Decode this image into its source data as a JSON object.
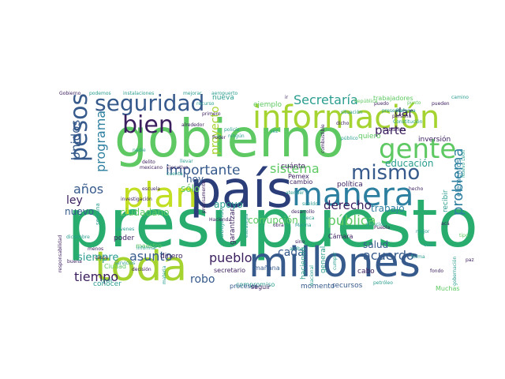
{
  "palette": {
    "dark_purple": "#3b1e5e",
    "deep_blue": "#2b3e7a",
    "blue": "#365a8c",
    "teal_blue": "#2d7fa0",
    "teal": "#2a9d8f",
    "green": "#28ad6e",
    "light_green": "#5ec962",
    "lime": "#a5d330",
    "yellow_green": "#c2df23"
  },
  "words": [
    {
      "text": "presupuesto",
      "color": "green"
    },
    {
      "text": "gobierno",
      "color": "light_green"
    },
    {
      "text": "país",
      "color": "deep_blue"
    },
    {
      "text": "toda",
      "color": "lime"
    },
    {
      "text": "millones",
      "color": "blue"
    },
    {
      "text": "información",
      "color": "lime"
    },
    {
      "text": "manera",
      "color": "teal_blue"
    },
    {
      "text": "plan",
      "color": "yellow_green"
    },
    {
      "text": "seguridad",
      "color": "blue"
    },
    {
      "text": "gente",
      "color": "light_green"
    },
    {
      "text": "pesos",
      "color": "blue"
    },
    {
      "text": "bien",
      "color": "dark_purple"
    },
    {
      "text": "mismo",
      "color": "blue"
    },
    {
      "text": "Secretaría",
      "color": "teal"
    },
    {
      "text": "importante",
      "color": "blue"
    },
    {
      "text": "programa",
      "color": "teal_blue"
    },
    {
      "text": "Unidos",
      "color": "blue"
    },
    {
      "text": "sistema",
      "color": "light_green"
    },
    {
      "text": "parte",
      "color": "dark_purple"
    },
    {
      "text": "pública",
      "color": "light_green"
    },
    {
      "text": "derecho",
      "color": "dark_purple"
    },
    {
      "text": "problema",
      "color": "teal_blue"
    },
    {
      "text": "dar",
      "color": "dark_purple"
    },
    {
      "text": "educación",
      "color": "teal"
    },
    {
      "text": "proyecto",
      "color": "lime"
    },
    {
      "text": "pueblo",
      "color": "dark_purple"
    },
    {
      "text": "tiempo",
      "color": "dark_purple"
    },
    {
      "text": "asunto",
      "color": "blue"
    },
    {
      "text": "siempre",
      "color": "teal"
    },
    {
      "text": "acuerdo",
      "color": "blue"
    },
    {
      "text": "salud",
      "color": "blue"
    },
    {
      "text": "cada",
      "color": "blue"
    },
    {
      "text": "años",
      "color": "blue"
    },
    {
      "text": "ley",
      "color": "dark_purple"
    },
    {
      "text": "nuevo",
      "color": "blue"
    },
    {
      "text": "ciudadano",
      "color": "light_green"
    },
    {
      "text": "apoyo",
      "color": "teal"
    },
    {
      "text": "corrupción",
      "color": "light_green"
    },
    {
      "text": "trabajo",
      "color": "teal_blue"
    },
    {
      "text": "robo",
      "color": "blue"
    },
    {
      "text": "hoy",
      "color": "blue"
    },
    {
      "text": "sólo",
      "color": "light_green"
    },
    {
      "text": "ejemplo",
      "color": "light_green"
    },
    {
      "text": "trabajadores",
      "color": "light_green"
    },
    {
      "text": "política",
      "color": "dark_purple"
    },
    {
      "text": "Pemex",
      "color": "dark_purple"
    },
    {
      "text": "cuánto",
      "color": "dark_purple"
    },
    {
      "text": "cambio",
      "color": "dark_purple"
    },
    {
      "text": "inversión",
      "color": "dark_purple"
    },
    {
      "text": "recibir",
      "color": "teal"
    },
    {
      "text": "elementos",
      "color": "teal_blue"
    },
    {
      "text": "Cámara",
      "color": "dark_purple"
    },
    {
      "text": "recursos",
      "color": "blue"
    },
    {
      "text": "momento",
      "color": "blue"
    },
    {
      "text": "compromiso",
      "color": "teal"
    },
    {
      "text": "Muchas",
      "color": "light_green"
    },
    {
      "text": "mañana",
      "color": "blue"
    },
    {
      "text": "procesos",
      "color": "blue"
    },
    {
      "text": "seguir",
      "color": "dark_purple"
    },
    {
      "text": "secretario",
      "color": "dark_purple"
    },
    {
      "text": "garantizar",
      "color": "dark_purple"
    },
    {
      "text": "dinero",
      "color": "dark_purple"
    },
    {
      "text": "poder",
      "color": "dark_purple"
    },
    {
      "text": "conocer",
      "color": "teal"
    },
    {
      "text": "maestro",
      "color": "light_green"
    },
    {
      "text": "Ciudad",
      "color": "light_green"
    },
    {
      "text": "trabajando",
      "color": "teal"
    },
    {
      "text": "hablando",
      "color": "dark_purple"
    },
    {
      "text": "Gobierno",
      "color": "dark_purple"
    },
    {
      "text": "podemos",
      "color": "teal"
    },
    {
      "text": "instalaciones",
      "color": "teal"
    },
    {
      "text": "mejorar",
      "color": "teal"
    },
    {
      "text": "aeropuerto",
      "color": "teal"
    },
    {
      "text": "nueva",
      "color": "teal"
    },
    {
      "text": "primero",
      "color": "dark_purple"
    },
    {
      "text": "dicho",
      "color": "dark_purple"
    },
    {
      "text": "puedo",
      "color": "dark_purple"
    },
    {
      "text": "pueden",
      "color": "dark_purple"
    },
    {
      "text": "Constitución",
      "color": "teal"
    },
    {
      "text": "Defensa",
      "color": "teal"
    },
    {
      "text": "persona",
      "color": "dark_purple"
    },
    {
      "text": "alrededor",
      "color": "dark_purple"
    },
    {
      "text": "Poder",
      "color": "dark_purple"
    },
    {
      "text": "quiero",
      "color": "light_green"
    },
    {
      "text": "escuela",
      "color": "dark_purple"
    },
    {
      "text": "investigación",
      "color": "dark_purple"
    },
    {
      "text": "mexicano",
      "color": "dark_purple"
    },
    {
      "text": "delito",
      "color": "dark_purple"
    },
    {
      "text": "Ejecutivo",
      "color": "dark_purple"
    },
    {
      "text": "cuenta",
      "color": "teal"
    },
    {
      "text": "llevar",
      "color": "teal"
    },
    {
      "text": "Hacienda",
      "color": "dark_purple"
    },
    {
      "text": "Marina",
      "color": "teal"
    },
    {
      "text": "atender",
      "color": "teal"
    },
    {
      "text": "sueldo",
      "color": "teal"
    },
    {
      "text": "hecho",
      "color": "dark_purple"
    },
    {
      "text": "forma",
      "color": "teal"
    },
    {
      "text": "cabo",
      "color": "dark_purple"
    },
    {
      "text": "general",
      "color": "teal"
    },
    {
      "text": "haciendo",
      "color": "teal"
    },
    {
      "text": "fondo",
      "color": "dark_purple"
    },
    {
      "text": "paz",
      "color": "dark_purple"
    },
    {
      "text": "tipo",
      "color": "light_green"
    },
    {
      "text": "semana",
      "color": "teal"
    },
    {
      "text": "jóvenes",
      "color": "teal"
    },
    {
      "text": "servicios",
      "color": "teal"
    },
    {
      "text": "decisión",
      "color": "dark_purple"
    },
    {
      "text": "informar",
      "color": "teal"
    },
    {
      "text": "materia",
      "color": "teal"
    },
    {
      "text": "nivel",
      "color": "teal"
    },
    {
      "text": "buena",
      "color": "dark_purple"
    },
    {
      "text": "Nuevo León",
      "color": "teal"
    },
    {
      "text": "Puebla",
      "color": "dark_purple"
    },
    {
      "text": "atención",
      "color": "teal"
    },
    {
      "text": "petróleo",
      "color": "teal"
    },
    {
      "text": "sino",
      "color": "dark_purple"
    },
    {
      "text": "vez",
      "color": "teal"
    },
    {
      "text": "nadie",
      "color": "teal"
    },
    {
      "text": "combustible",
      "color": "dark_purple"
    },
    {
      "text": "República",
      "color": "light_green"
    },
    {
      "text": "punto",
      "color": "light_green"
    },
    {
      "text": "camino",
      "color": "teal"
    },
    {
      "text": "policía",
      "color": "teal"
    },
    {
      "text": "recurso",
      "color": "teal"
    },
    {
      "text": "situación",
      "color": "teal"
    },
    {
      "text": "presentar",
      "color": "teal"
    },
    {
      "text": "diciembre",
      "color": "teal"
    },
    {
      "text": "obra",
      "color": "dark_purple"
    },
    {
      "text": "cumplir",
      "color": "teal"
    },
    {
      "text": "Nacional",
      "color": "teal"
    },
    {
      "text": "arriba",
      "color": "teal"
    },
    {
      "text": "menos",
      "color": "dark_purple"
    },
    {
      "text": "casos",
      "color": "dark_purple"
    },
    {
      "text": "precisamente",
      "color": "dark_purple"
    },
    {
      "text": "desarrollo",
      "color": "dark_purple"
    },
    {
      "text": "estrategia",
      "color": "teal"
    },
    {
      "text": "responsabilidad",
      "color": "dark_purple"
    },
    {
      "text": "gobernación",
      "color": "teal"
    },
    {
      "text": "mejor",
      "color": "teal"
    },
    {
      "text": "acá",
      "color": "dark_purple"
    },
    {
      "text": "cual",
      "color": "teal"
    },
    {
      "text": "beca",
      "color": "teal"
    },
    {
      "text": "ningún",
      "color": "teal"
    },
    {
      "text": "público",
      "color": "teal"
    },
    {
      "text": "ir",
      "color": "dark_purple"
    }
  ]
}
